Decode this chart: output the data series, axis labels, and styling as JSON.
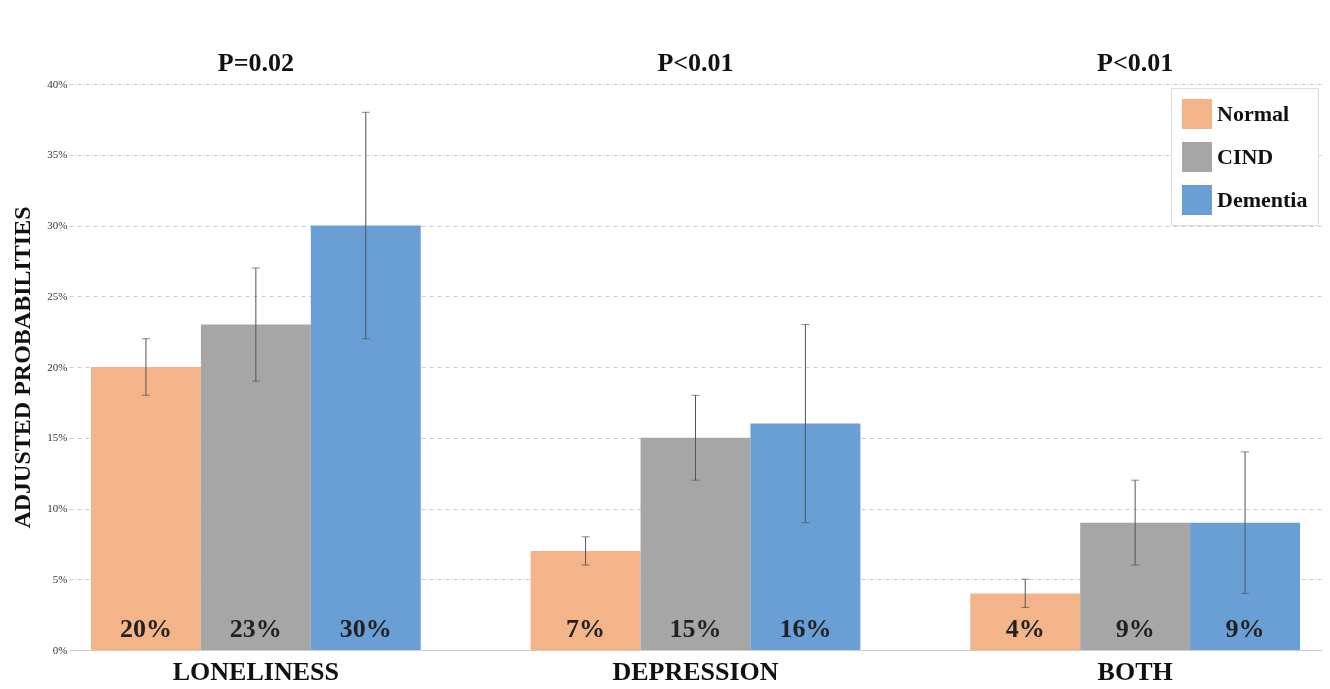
{
  "chart_data": {
    "type": "bar",
    "ylabel": "ADJUSTED PROBABILITIES",
    "categories": [
      "LONELINESS",
      "DEPRESSION",
      "BOTH"
    ],
    "series": [
      {
        "name": "Normal",
        "color": "#f2b488",
        "values": [
          20,
          7,
          4
        ],
        "errors": [
          [
            18,
            22
          ],
          [
            6,
            8
          ],
          [
            3,
            5
          ]
        ],
        "value_labels": [
          "20%",
          "7%",
          "4%"
        ]
      },
      {
        "name": "CIND",
        "color": "#a6a6a6",
        "values": [
          23,
          15,
          9
        ],
        "errors": [
          [
            19,
            27
          ],
          [
            12,
            18
          ],
          [
            6,
            12
          ]
        ],
        "value_labels": [
          "23%",
          "15%",
          "9%"
        ]
      },
      {
        "name": "Dementia",
        "color": "#6a9fd6",
        "values": [
          30,
          16,
          9
        ],
        "errors": [
          [
            22,
            38
          ],
          [
            9,
            23
          ],
          [
            4,
            14
          ]
        ],
        "value_labels": [
          "30%",
          "16%",
          "9%"
        ]
      }
    ],
    "ylim": [
      0,
      40
    ],
    "yticks": [
      {
        "value": 0,
        "label": "0%"
      },
      {
        "value": 5,
        "label": "5%"
      },
      {
        "value": 10,
        "label": "10%"
      },
      {
        "value": 15,
        "label": "15%"
      },
      {
        "value": 20,
        "label": "20%"
      },
      {
        "value": 25,
        "label": "25%"
      },
      {
        "value": 30,
        "label": "30%"
      },
      {
        "value": 35,
        "label": "35%"
      },
      {
        "value": 40,
        "label": "40%"
      }
    ],
    "grid": "y",
    "legend": "top right",
    "annotations": [
      "P=0.02",
      "P<0.01",
      "P<0.01"
    ]
  }
}
